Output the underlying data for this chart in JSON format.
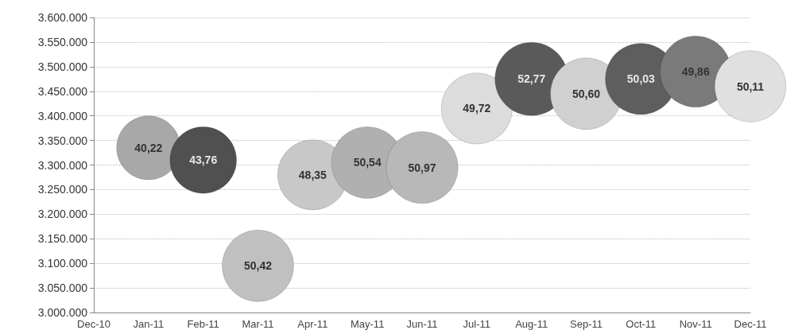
{
  "chart_data": {
    "type": "bubble",
    "categories": [
      "Dec-10",
      "Jan-11",
      "Feb-11",
      "Mar-11",
      "Apr-11",
      "May-11",
      "Jun-11",
      "Jul-11",
      "Aug-11",
      "Sep-11",
      "Oct-11",
      "Nov-11",
      "Dec-11"
    ],
    "values": [
      null,
      3335000,
      3310000,
      3095000,
      3280000,
      3305000,
      3295000,
      3415000,
      3475000,
      3445000,
      3475000,
      3490000,
      3460000
    ],
    "sizes": [
      null,
      40.22,
      43.76,
      50.42,
      48.35,
      50.54,
      50.97,
      49.72,
      52.77,
      50.6,
      50.03,
      49.86,
      50.11
    ],
    "value_labels": [
      null,
      "40,22",
      "43,76",
      "50,42",
      "48,35",
      "50,54",
      "50,97",
      "49,72",
      "52,77",
      "50,60",
      "50,03",
      "49,86",
      "50,11"
    ],
    "colors": [
      "#b0b0b0",
      "#a8a8a8",
      "#505050",
      "#c0c0c0",
      "#c8c8c8",
      "#b0b0b0",
      "#b8b8b8",
      "#dcdcdc",
      "#5a5a5a",
      "#d0d0d0",
      "#5e5e5e",
      "#7a7a7a",
      "#e0e0e0"
    ],
    "ylim": [
      3000000,
      3600000
    ],
    "yticks": [
      {
        "value": 3000000,
        "label": "3.000.000"
      },
      {
        "value": 3050000,
        "label": "3.050.000"
      },
      {
        "value": 3100000,
        "label": "3.100.000"
      },
      {
        "value": 3150000,
        "label": "3.150.000"
      },
      {
        "value": 3200000,
        "label": "3.200.000"
      },
      {
        "value": 3250000,
        "label": "3.250.000"
      },
      {
        "value": 3300000,
        "label": "3.300.000"
      },
      {
        "value": 3350000,
        "label": "3.350.000"
      },
      {
        "value": 3400000,
        "label": "3.400.000"
      },
      {
        "value": 3450000,
        "label": "3.450.000"
      },
      {
        "value": 3500000,
        "label": "3.500.000"
      },
      {
        "value": 3550000,
        "label": "3.550.000"
      },
      {
        "value": 3600000,
        "label": "3.600.000"
      }
    ],
    "grid": "y"
  }
}
